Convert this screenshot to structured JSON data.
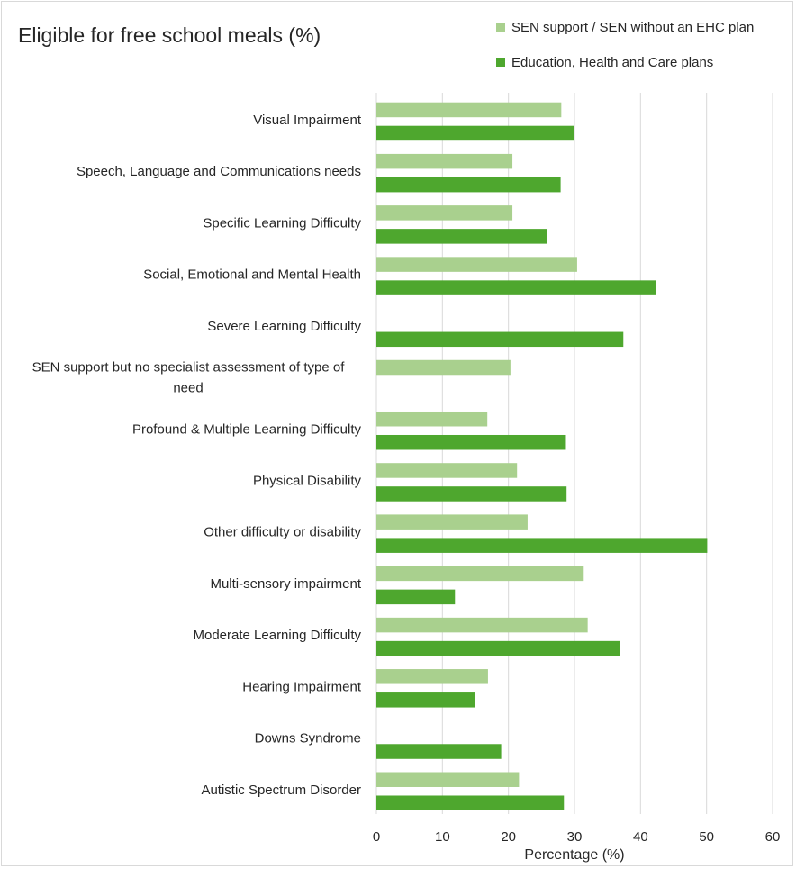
{
  "chart_data": {
    "type": "bar",
    "orientation": "horizontal",
    "title": "Eligible for free school meals (%)",
    "xlabel": "Percentage (%)",
    "ylabel": "",
    "xlim": [
      0,
      60
    ],
    "x_ticks": [
      "0",
      "10",
      "20",
      "30",
      "40",
      "50",
      "60"
    ],
    "grid": "vertical",
    "legend_position": "top-right",
    "categories": [
      "Visual Impairment",
      "Speech, Language and Communications needs",
      "Specific Learning Difficulty",
      "Social, Emotional and Mental Health",
      "Severe Learning Difficulty",
      "SEN support but no specialist assessment of type of need",
      "Profound & Multiple Learning Difficulty",
      "Physical Disability",
      "Other difficulty or disability",
      "Multi-sensory impairment",
      "Moderate Learning Difficulty",
      "Hearing Impairment",
      "Downs Syndrome",
      "Autistic Spectrum Disorder"
    ],
    "category_lines": [
      [
        "Visual Impairment"
      ],
      [
        "Speech, Language and Communications needs"
      ],
      [
        "Specific Learning Difficulty"
      ],
      [
        "Social, Emotional and Mental Health"
      ],
      [
        "Severe Learning Difficulty"
      ],
      [
        "SEN support but no specialist assessment of type of",
        "need"
      ],
      [
        "Profound & Multiple Learning Difficulty"
      ],
      [
        "Physical Disability"
      ],
      [
        "Other difficulty or disability"
      ],
      [
        "Multi-sensory impairment"
      ],
      [
        "Moderate Learning Difficulty"
      ],
      [
        "Hearing Impairment"
      ],
      [
        "Downs Syndrome"
      ],
      [
        "Autistic Spectrum Disorder"
      ]
    ],
    "series": [
      {
        "name": "SEN support / SEN without an EHC plan",
        "color": "#a9d08e",
        "values": [
          28.0,
          20.6,
          20.6,
          30.4,
          null,
          20.3,
          16.8,
          21.3,
          22.9,
          31.4,
          32.0,
          16.9,
          null,
          21.6
        ]
      },
      {
        "name": "Education, Health and Care plans",
        "color": "#4ea72e",
        "values": [
          30.0,
          27.9,
          25.8,
          42.3,
          37.4,
          null,
          28.7,
          28.8,
          50.1,
          11.9,
          36.9,
          15.0,
          18.9,
          28.4
        ]
      }
    ]
  },
  "colors": {
    "gridline": "#d9d9d9",
    "text": "#262626",
    "border": "#d9d9d9"
  }
}
